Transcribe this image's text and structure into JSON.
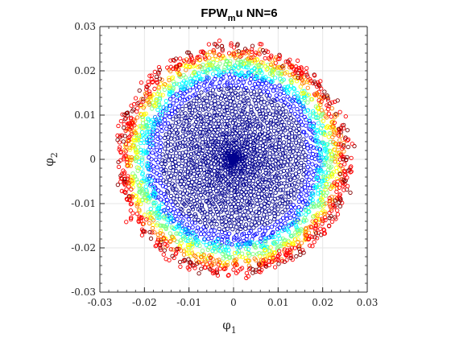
{
  "chart_data": {
    "type": "scatter",
    "title": {
      "main": "FPW",
      "subscript": "m",
      "suffix": "u NN=6"
    },
    "xlabel": {
      "symbol": "φ",
      "subscript": "1"
    },
    "ylabel": {
      "symbol": "φ",
      "subscript": "2"
    },
    "xlim": [
      -0.03,
      0.03
    ],
    "ylim": [
      -0.03,
      0.03
    ],
    "xticks": [
      -0.03,
      -0.02,
      -0.01,
      0,
      0.01,
      0.02,
      0.03
    ],
    "yticks": [
      -0.03,
      -0.02,
      -0.01,
      0,
      0.01,
      0.02,
      0.03
    ],
    "xtick_labels": [
      "-0.03",
      "-0.02",
      "-0.01",
      "0",
      "0.01",
      "0.02",
      "0.03"
    ],
    "ytick_labels": [
      "-0.03",
      "-0.02",
      "-0.01",
      "0",
      "0.01",
      "0.02",
      "0.03"
    ],
    "grid": true,
    "marker": "open-circle",
    "aspect": "equal",
    "colormap": [
      "#00008f",
      "#0000ff",
      "#0080ff",
      "#00ffff",
      "#80ff80",
      "#ffff00",
      "#ff8000",
      "#ff0000",
      "#800000"
    ],
    "description_of_structure": {
      "outer_radius": 0.026,
      "inner_dense_ring_radius": 0.0205,
      "center": [
        0,
        0
      ]
    }
  }
}
